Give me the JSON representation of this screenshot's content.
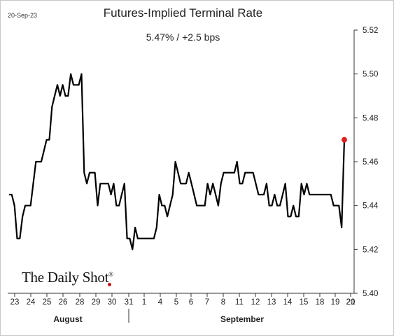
{
  "header": {
    "date_stamp": "20-Sep-23",
    "title": "Futures-Implied Terminal Rate",
    "subtitle": "5.47%  /  +2.5 bps"
  },
  "branding": {
    "logo_text": "The Daily Shot",
    "logo_mark": "®"
  },
  "chart_data": {
    "type": "line",
    "title": "Futures-Implied Terminal Rate",
    "subtitle": "5.47%  /  +2.5 bps",
    "xlabel": "",
    "ylabel": "",
    "ylim": [
      5.4,
      5.52
    ],
    "y_ticks": [
      5.4,
      5.42,
      5.44,
      5.46,
      5.48,
      5.5,
      5.52
    ],
    "y_axis_side": "right",
    "grid": false,
    "x_ticks": [
      "23",
      "24",
      "25",
      "26",
      "28",
      "29",
      "30",
      "31",
      "1",
      "4",
      "5",
      "6",
      "7",
      "8",
      "11",
      "12",
      "13",
      "14",
      "15",
      "18",
      "19",
      "20",
      "21"
    ],
    "month_labels": [
      "August",
      "September"
    ],
    "line_color": "#000000",
    "last_point_color": "#e02020",
    "series": [
      {
        "values": [
          5.445,
          5.445,
          5.44,
          5.425,
          5.425,
          5.435,
          5.44,
          5.44,
          5.44,
          5.45,
          5.46,
          5.46,
          5.46,
          5.465,
          5.47,
          5.47,
          5.485,
          5.49,
          5.495,
          5.49,
          5.495,
          5.49,
          5.49,
          5.5,
          5.495,
          5.495,
          5.495,
          5.5,
          5.455,
          5.45,
          5.455,
          5.455,
          5.455,
          5.44,
          5.45,
          5.45,
          5.45,
          5.45,
          5.445,
          5.45,
          5.44,
          5.44,
          5.445,
          5.45,
          5.425,
          5.425,
          5.42,
          5.43,
          5.425,
          5.425,
          5.425,
          5.425,
          5.425,
          5.425,
          5.425,
          5.43,
          5.445,
          5.44,
          5.44,
          5.435,
          5.44,
          5.445,
          5.46,
          5.455,
          5.45,
          5.45,
          5.45,
          5.455,
          5.45,
          5.445,
          5.44,
          5.44,
          5.44,
          5.44,
          5.45,
          5.445,
          5.45,
          5.445,
          5.44,
          5.45,
          5.455,
          5.455,
          5.455,
          5.455,
          5.455,
          5.46,
          5.45,
          5.45,
          5.455,
          5.455,
          5.455,
          5.455,
          5.45,
          5.445,
          5.445,
          5.445,
          5.45,
          5.44,
          5.44,
          5.445,
          5.44,
          5.44,
          5.445,
          5.45,
          5.435,
          5.435,
          5.44,
          5.435,
          5.435,
          5.45,
          5.445,
          5.45,
          5.445,
          5.445,
          5.445,
          5.445,
          5.445,
          5.445,
          5.445,
          5.445,
          5.445,
          5.44,
          5.44,
          5.44,
          5.43,
          5.47
        ]
      }
    ]
  }
}
